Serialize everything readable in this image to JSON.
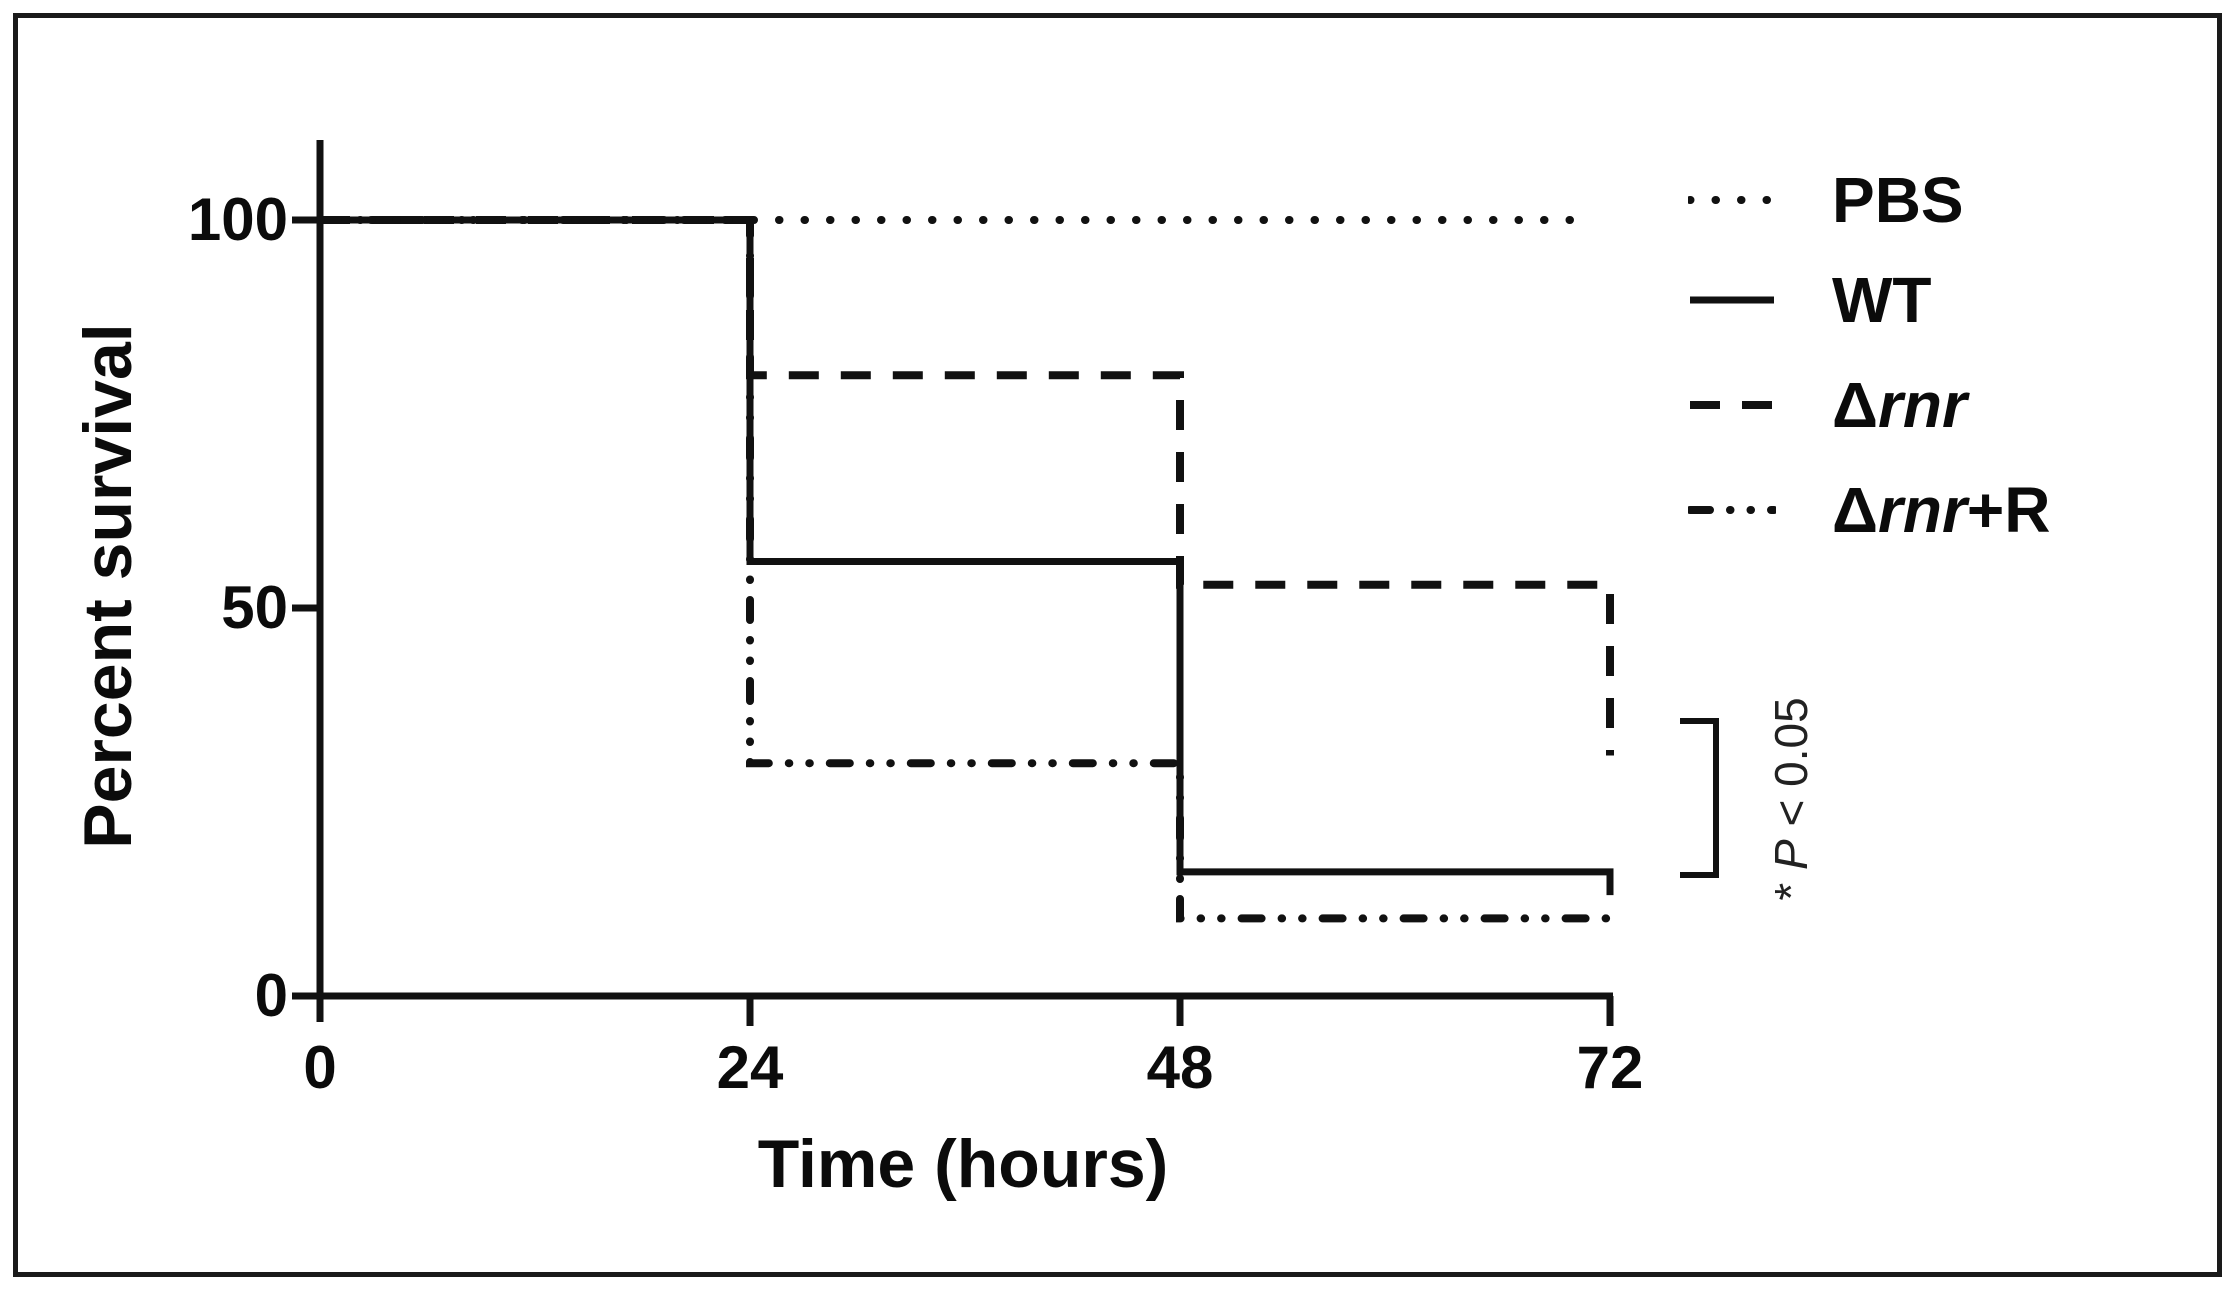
{
  "figure": {
    "background": "#ffffff",
    "border_color": "#1a1a1a",
    "ink_color": "#111111"
  },
  "chart_data": {
    "type": "line",
    "subtype": "kaplan-meier-step-survival",
    "title": "",
    "xlabel": "Time (hours)",
    "ylabel": "Percent survival",
    "xlim": [
      0,
      72
    ],
    "ylim": [
      0,
      100
    ],
    "x_ticks": [
      0,
      24,
      48,
      72
    ],
    "y_ticks": [
      0,
      50,
      100
    ],
    "grid": false,
    "legend_position": "top-right",
    "series": [
      {
        "name": "PBS",
        "line_style": "dotted",
        "color": "#111111",
        "label_parts": {
          "pre": "PBS",
          "italic": "",
          "post": ""
        },
        "points": [
          [
            0,
            100
          ],
          [
            71,
            100
          ]
        ]
      },
      {
        "name": "WT",
        "line_style": "solid",
        "color": "#111111",
        "label_parts": {
          "pre": "WT",
          "italic": "",
          "post": ""
        },
        "points": [
          [
            0,
            100
          ],
          [
            24,
            100
          ],
          [
            24,
            56
          ],
          [
            48,
            56
          ],
          [
            48,
            16
          ],
          [
            72,
            16
          ],
          [
            72,
            13
          ]
        ]
      },
      {
        "name": "Delta-rnr",
        "line_style": "dashed",
        "color": "#111111",
        "label_parts": {
          "pre": "Δ",
          "italic": "rnr",
          "post": ""
        },
        "points": [
          [
            0,
            100
          ],
          [
            24,
            100
          ],
          [
            24,
            80
          ],
          [
            48,
            80
          ],
          [
            48,
            53
          ],
          [
            72,
            53
          ],
          [
            72,
            31
          ]
        ]
      },
      {
        "name": "Delta-rnr-plus-R",
        "line_style": "dash-dot-dot",
        "color": "#111111",
        "label_parts": {
          "pre": "Δ",
          "italic": "rnr",
          "post": "+R"
        },
        "points": [
          [
            0,
            100
          ],
          [
            24,
            100
          ],
          [
            24,
            30
          ],
          [
            48,
            30
          ],
          [
            48,
            10
          ],
          [
            72,
            10
          ]
        ]
      }
    ],
    "annotation": {
      "bracket": true,
      "compares": [
        "Delta-rnr",
        "WT"
      ],
      "text_parts": {
        "pre": "* ",
        "italic": "P",
        "post": " < 0.05"
      }
    }
  }
}
